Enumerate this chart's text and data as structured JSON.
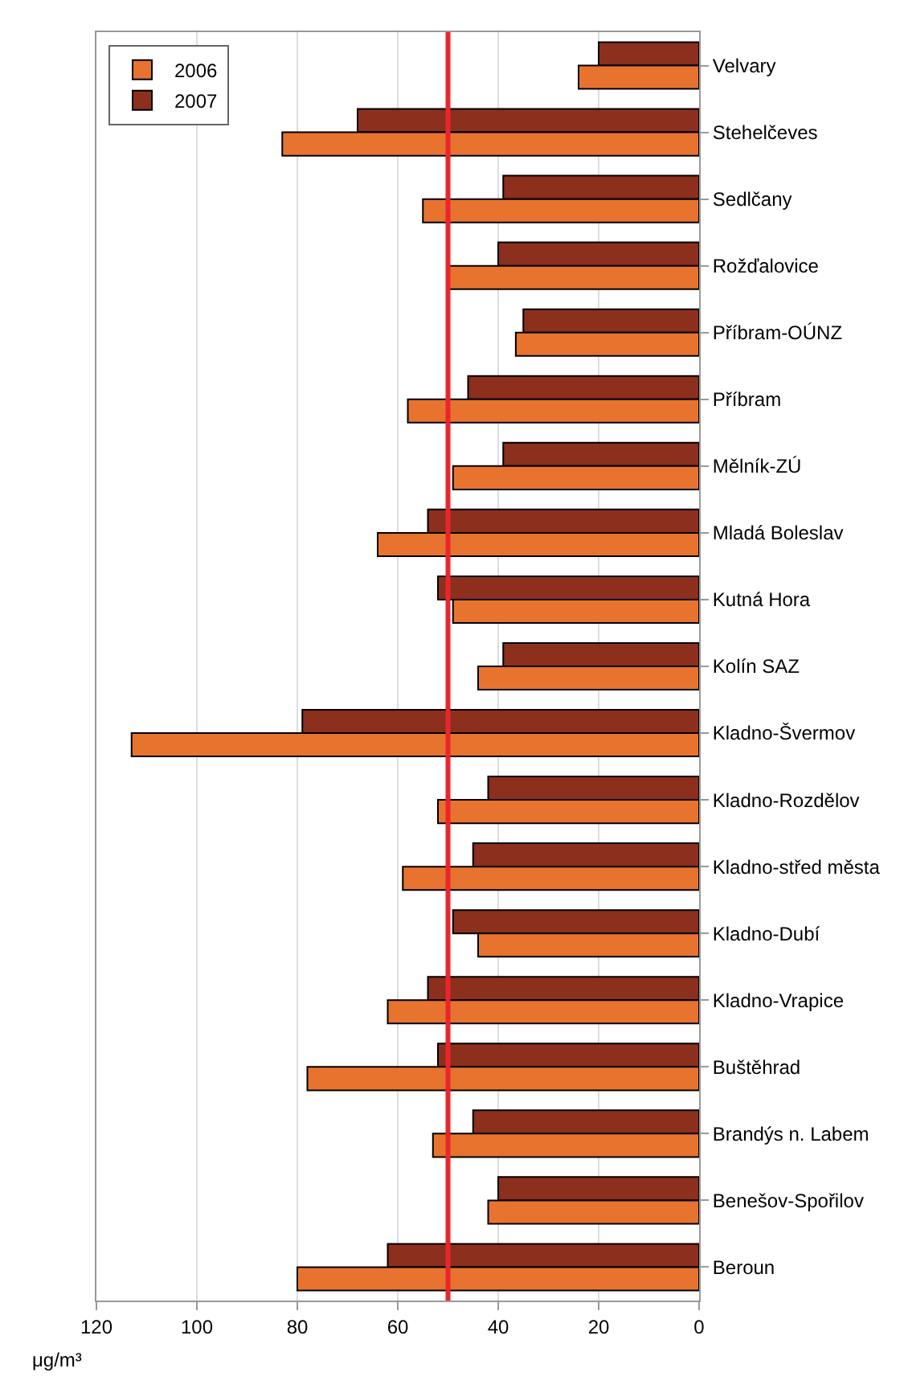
{
  "chart_data": {
    "type": "bar",
    "orientation": "horizontal",
    "xlabel": "μg/m³",
    "categories": [
      "Velvary",
      "Stehelčeves",
      "Sedlčany",
      "Rožďalovice",
      "Příbram-OÚNZ",
      "Příbram",
      "Mělník-ZÚ",
      "Mladá Boleslav",
      "Kutná Hora",
      "Kolín SAZ",
      "Kladno-Švermov",
      "Kladno-Rozdělov",
      "Kladno-střed města",
      "Kladno-Dubí",
      "Kladno-Vrapice",
      "Buštěhrad",
      "Brandýs n. Labem",
      "Benešov-Spořilov",
      "Beroun"
    ],
    "series": [
      {
        "name": "2006",
        "color": "#e8732f",
        "values": [
          24,
          83,
          55,
          50,
          36.5,
          58,
          49,
          64,
          49,
          44,
          113,
          52,
          59,
          44,
          62,
          78,
          53,
          42,
          80
        ]
      },
      {
        "name": "2007",
        "color": "#8c2f1c",
        "values": [
          20,
          68,
          39,
          40,
          35,
          46,
          39,
          54,
          52,
          39,
          79,
          42,
          45,
          49,
          54,
          52,
          45,
          40,
          62
        ]
      }
    ],
    "xlim": [
      120,
      0
    ],
    "xticks": [
      0,
      20,
      40,
      60,
      80,
      100,
      120
    ],
    "grid": "x",
    "legend": "top left",
    "ref_lines": [
      {
        "axis": "x",
        "value": 50,
        "color": "#e8262b"
      }
    ]
  }
}
